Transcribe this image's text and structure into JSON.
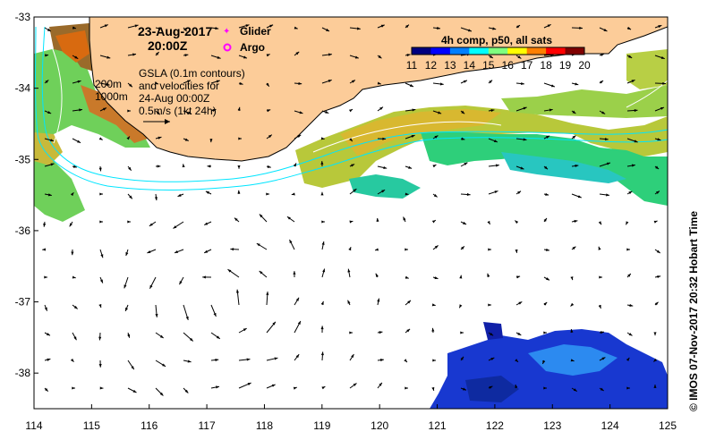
{
  "header": {
    "date": "23-Aug-2017",
    "time": "20:00Z"
  },
  "legend": {
    "glider_label": "Glider",
    "argo_label": "Argo",
    "glider_color": "#ff00ff",
    "argo_color": "#ff00ff"
  },
  "notes": {
    "gsla_line1": "GSLA (0.1m contours)",
    "gsla_line2": "and velocities for",
    "gsla_line3": "24-Aug 00:00Z",
    "scale_label": "0.5m/s (1kt 24h)",
    "depth_200": "200m",
    "depth_1000": "1000m"
  },
  "colorbar": {
    "title": "4h comp, p50, all sats",
    "ticks": [
      "11",
      "12",
      "13",
      "14",
      "15",
      "16",
      "17",
      "18",
      "19",
      "20"
    ],
    "colors": [
      "#00007f",
      "#0000ff",
      "#007fff",
      "#00ffff",
      "#7fff7f",
      "#ffff00",
      "#ff7f00",
      "#ff0000",
      "#7f0000"
    ]
  },
  "axes": {
    "x_ticks": [
      "114",
      "115",
      "116",
      "117",
      "118",
      "119",
      "120",
      "121",
      "122",
      "123",
      "124",
      "125"
    ],
    "y_ticks": [
      "-33",
      "-34",
      "-35",
      "-36",
      "-37",
      "-38"
    ],
    "xlim": [
      114,
      125
    ],
    "ylim": [
      -38.5,
      -33
    ]
  },
  "colors": {
    "land": "#fccc99",
    "bathymetry": "#00e5ff",
    "ocean": "#ffffff"
  },
  "side_label": "© IMOS 07-Nov-2017 20:32 Hobart Time"
}
